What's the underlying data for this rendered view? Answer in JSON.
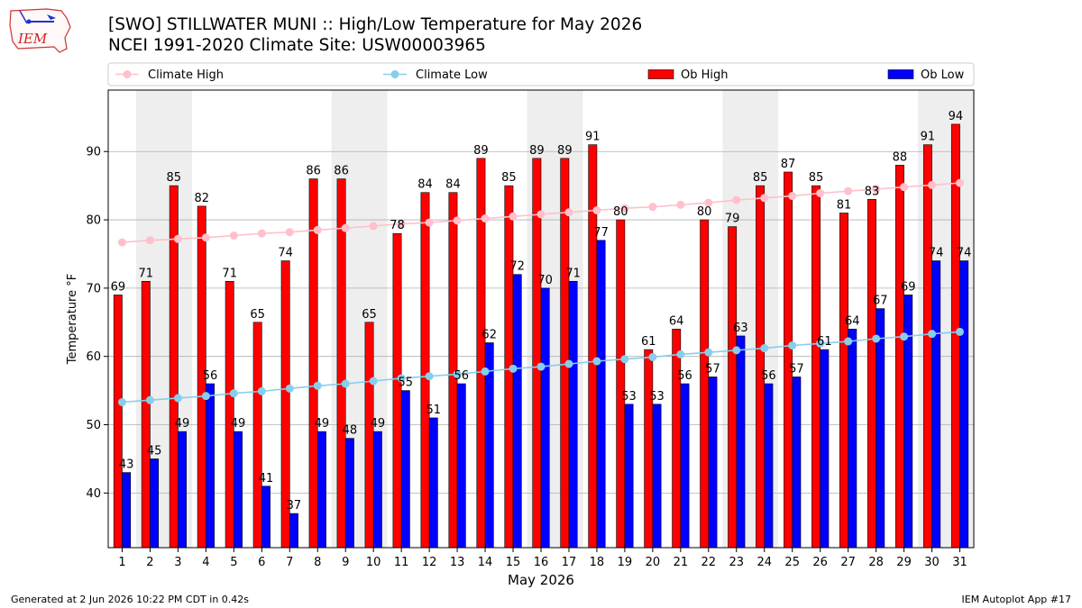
{
  "header": {
    "title_line1": "[SWO] STILLWATER MUNI :: High/Low Temperature for May 2026",
    "title_line2": "NCEI 1991-2020 Climate Site: USW00003965"
  },
  "logo": {
    "text": "IEM",
    "icon": "iowa-state-outline-icon"
  },
  "footer": {
    "left": "Generated at 2 Jun 2026 10:22 PM CDT in 0.42s",
    "right": "IEM Autoplot App #17"
  },
  "colors": {
    "ob_high": "#ff0000",
    "ob_low": "#0000ff",
    "climate_high": "#ffc0cb",
    "climate_low": "#87ceeb",
    "weekend_band": "#eeeeee",
    "grid": "#b0b0b0"
  },
  "chart_data": {
    "type": "bar",
    "xlabel": "May 2026",
    "ylabel": "Temperature °F",
    "ylim": [
      32,
      99
    ],
    "yticks": [
      40,
      50,
      60,
      70,
      80,
      90
    ],
    "grid": "horizontal",
    "legend_position": "top",
    "categories": [
      "1",
      "2",
      "3",
      "4",
      "5",
      "6",
      "7",
      "8",
      "9",
      "10",
      "11",
      "12",
      "13",
      "14",
      "15",
      "16",
      "17",
      "18",
      "19",
      "20",
      "21",
      "22",
      "23",
      "24",
      "25",
      "26",
      "27",
      "28",
      "29",
      "30",
      "31"
    ],
    "shaded_days": [
      2,
      3,
      9,
      10,
      16,
      17,
      23,
      24,
      30,
      31
    ],
    "series": [
      {
        "name": "Ob High",
        "kind": "bar",
        "values": [
          69,
          71,
          85,
          82,
          71,
          65,
          74,
          86,
          86,
          65,
          78,
          84,
          84,
          89,
          85,
          89,
          89,
          91,
          80,
          61,
          64,
          80,
          79,
          85,
          87,
          85,
          81,
          83,
          88,
          91,
          94
        ]
      },
      {
        "name": "Ob Low",
        "kind": "bar",
        "values": [
          43,
          45,
          49,
          56,
          49,
          41,
          37,
          49,
          48,
          49,
          55,
          51,
          56,
          62,
          72,
          70,
          71,
          77,
          53,
          53,
          56,
          57,
          63,
          56,
          57,
          61,
          64,
          67,
          69,
          74,
          74
        ]
      },
      {
        "name": "Climate High",
        "kind": "line",
        "values": [
          76.7,
          77.0,
          77.2,
          77.4,
          77.7,
          78.0,
          78.2,
          78.5,
          78.8,
          79.1,
          79.4,
          79.6,
          79.9,
          80.2,
          80.5,
          80.8,
          81.1,
          81.4,
          81.7,
          81.9,
          82.2,
          82.5,
          82.9,
          83.2,
          83.5,
          83.9,
          84.2,
          84.5,
          84.8,
          85.1,
          85.4
        ]
      },
      {
        "name": "Climate Low",
        "kind": "line",
        "values": [
          53.3,
          53.6,
          53.9,
          54.2,
          54.6,
          54.9,
          55.3,
          55.7,
          56.0,
          56.4,
          56.8,
          57.1,
          57.4,
          57.8,
          58.2,
          58.5,
          58.9,
          59.3,
          59.6,
          59.9,
          60.3,
          60.6,
          60.9,
          61.2,
          61.6,
          61.9,
          62.2,
          62.6,
          62.9,
          63.3,
          63.6
        ]
      }
    ],
    "legend": [
      "Climate High",
      "Climate Low",
      "Ob High",
      "Ob Low"
    ]
  }
}
